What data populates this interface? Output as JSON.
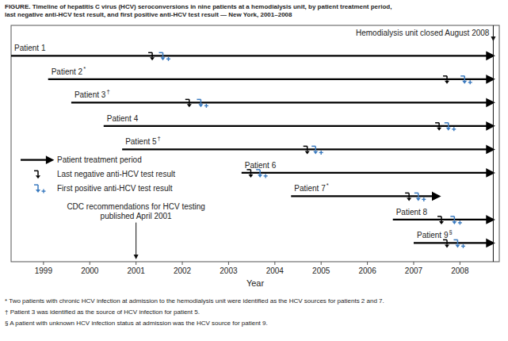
{
  "chart_data": {
    "type": "timeline",
    "title": "FIGURE. Timeline of hepatitis C virus (HCV) seroconversions in nine patients at a hemodialysis unit, by patient treatment period,",
    "subtitle": "last negative anti-HCV test result, and first positive anti-HCV test result — New York, 2001–2008",
    "x_label": "Year",
    "xlim": [
      1998.3,
      2008.85
    ],
    "xticks": [
      1999,
      2000,
      2001,
      2002,
      2003,
      2004,
      2005,
      2006,
      2007,
      2008
    ],
    "categories": [
      "Patient 1",
      "Patient 2",
      "Patient 3",
      "Patient 4",
      "Patient 5",
      "Patient 6",
      "Patient 7",
      "Patient 8",
      "Patient 9"
    ],
    "category_marks": [
      null,
      "*",
      "†",
      null,
      "†",
      null,
      "*",
      null,
      "§"
    ],
    "series": [
      {
        "name": "Patient treatment period",
        "color": "black",
        "values": [
          [
            1998.3,
            2008.72
          ],
          [
            1999.1,
            2008.72
          ],
          [
            1999.6,
            2008.72
          ],
          [
            2000.3,
            2008.72
          ],
          [
            2000.7,
            2008.72
          ],
          [
            2003.28,
            2008.72
          ],
          [
            2004.35,
            2007.55
          ],
          [
            2006.55,
            2008.72
          ],
          [
            2007.0,
            2008.72
          ]
        ]
      },
      {
        "name": "Last negative anti-HCV test result",
        "color": "black",
        "values": [
          2001.35,
          2007.72,
          2002.15,
          2007.55,
          2004.7,
          2003.48,
          2006.9,
          2007.6,
          2007.72
        ]
      },
      {
        "name": "First positive anti-HCV test result",
        "color": "#3a7abf",
        "values": [
          2001.58,
          2008.1,
          2002.4,
          2007.75,
          2004.88,
          2003.68,
          2007.1,
          2007.88,
          2007.95
        ]
      }
    ],
    "vlines": [
      {
        "x": 2008.72,
        "label": "Hemodialysis unit closed August 2008"
      }
    ],
    "annotations": [
      {
        "x": 2001.0,
        "text": "CDC recommendations for HCV testing\npublished April 2001"
      }
    ],
    "legend": "left",
    "footnotes": [
      "* Two patients with chronic HCV infection at admission to the hemodialysis unit were identified as the HCV sources for patients 2 and 7.",
      "† Patient 3 was identified as the source of HCV infection for patient 5.",
      "§ A patient with unknown HCV infection status at admission was the HCV source for patient 9."
    ]
  }
}
